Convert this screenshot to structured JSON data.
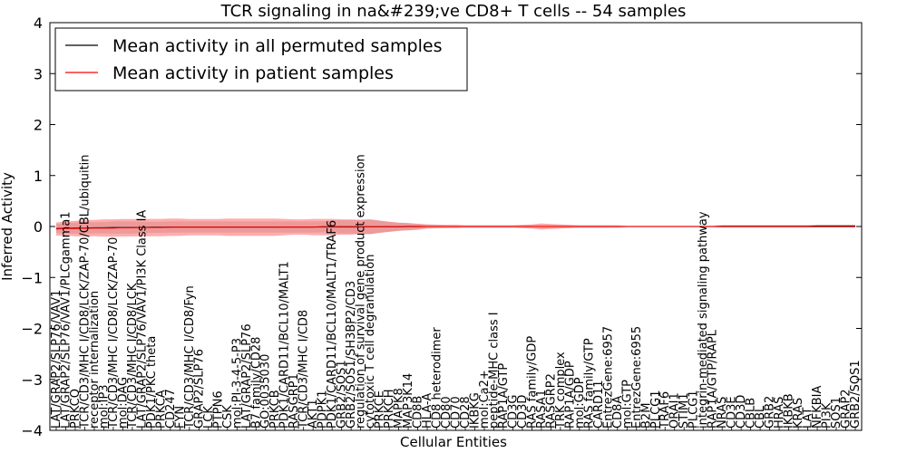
{
  "chart_data": {
    "type": "line",
    "title": "TCR signaling in na&#239;ve CD8+ T cells -- 54 samples",
    "xlabel": "Cellular Entities",
    "ylabel": "Inferred Activity",
    "ylim": [
      -4,
      4
    ],
    "yticks": [
      "4",
      "3",
      "2",
      "1",
      "0",
      "−1",
      "−2",
      "−3",
      "−4"
    ],
    "grid": false,
    "legend_position": "top-left",
    "categories": [
      "LAT/GRAP2/SLP76/VAV1",
      "LAT/GRAP2/SLP76/VAV1/PLCgamma1",
      "PRKCQ",
      "TCR/CD3/MHC I/CD8/LCK/ZAP-70/CBL/ubiquitin",
      "receptor internalization",
      "mol:IP3",
      "TCR/CD3/MHC I/CD8/LCK/ZAP-70",
      "mol:DAG",
      "TCR/CD3/MHC I/CD8/LCK",
      "LAT/GRAP2/SLP76/VAV1/PI3K Class IA",
      "PDK1/PKC theta",
      "PRKCA",
      "CD247",
      "FYN",
      "TCR/CD3/MHC I/CD8/Fyn",
      "GRAP2/SLP76",
      "LCK",
      "PTPN6",
      "CSK",
      "mol:PI-3-4-5-P3",
      "LAT/GRAP2/SLP76",
      "B7 family/CD28",
      "GO:0035030",
      "PRKCB",
      "PDK1/CARD11/BCL10/MALT1",
      "RASGRP1",
      "TCR/CD3/MHC I/CD8",
      "AKT1",
      "PDPK1",
      "PDK1/CARD11/BCL10/MALT1/TRAF6",
      "GRB2/SOS1",
      "GRB2/SOS1/SH3BP2/CD3",
      "regulation of survival gene product expression",
      "cytotoxic T cell degranulation",
      "PRKCE",
      "PRKCH",
      "MAPK8",
      "MAP3K14",
      "CD8B",
      "HLA-A",
      "CD8 heterodimer",
      "CD80",
      "CD70",
      "CD28",
      "IKBKG",
      "mol:Ca2+",
      "peptide-MHC class I",
      "RAP1A/GTP",
      "CD3G",
      "CD3D",
      "RAS family/GDP",
      "RASA1",
      "RASGRP2",
      "TRK complex",
      "RAP1A/GDP",
      "mol:GDP",
      "RAS family/GTP",
      "CARD11",
      "EntrezGene:6957",
      "CD8A",
      "mol:GTP",
      "EntrezGene:6955",
      "B2M",
      "PLCG1",
      "TRAF6",
      "ORAI1",
      "STIM1",
      "PLCG1",
      "integrin-mediated signaling pathway",
      "RAP1A/GTP/RAPL",
      "NRAS",
      "CD3E",
      "CD3D",
      "CBLB",
      "CBL",
      "GRB2",
      "HRAS",
      "IKBKB",
      "KRAS",
      "LAT",
      "NFKBIA",
      "PI3K",
      "SOS1",
      "GRAP2",
      "GRB2/SOS1"
    ],
    "series": [
      {
        "name": "Mean activity in all permuted samples",
        "color": "#000000",
        "values": [
          -0.04,
          -0.035,
          -0.03,
          -0.03,
          -0.025,
          -0.025,
          -0.02,
          -0.02,
          -0.02,
          -0.02,
          -0.015,
          -0.015,
          -0.01,
          -0.01,
          -0.01,
          -0.01,
          -0.01,
          -0.01,
          -0.01,
          -0.01,
          -0.01,
          -0.01,
          -0.01,
          -0.01,
          -0.01,
          -0.01,
          -0.01,
          -0.01,
          -0.005,
          -0.005,
          -0.005,
          -0.005,
          -0.005,
          -0.005,
          -0.005,
          -0.005,
          -0.005,
          0,
          0,
          0,
          0,
          0,
          0,
          0,
          0,
          0,
          0,
          0,
          0,
          0,
          0,
          0,
          0,
          0,
          0,
          0,
          0,
          0,
          0,
          0,
          0,
          0,
          0,
          0,
          0,
          0,
          0,
          0,
          0,
          0,
          0.005,
          0.005,
          0.005,
          0.005,
          0.005,
          0.005,
          0.005,
          0.005,
          0.005,
          0.005,
          0.01,
          0.01,
          0.01,
          0.01,
          0.01
        ]
      },
      {
        "name": "Mean activity in patient samples",
        "color": "#ff0000",
        "values": [
          -0.05,
          -0.04,
          -0.04,
          -0.035,
          -0.03,
          -0.03,
          -0.03,
          -0.025,
          -0.025,
          -0.02,
          -0.02,
          -0.02,
          -0.015,
          -0.015,
          -0.015,
          -0.015,
          -0.015,
          -0.015,
          -0.015,
          -0.015,
          -0.015,
          -0.015,
          -0.015,
          -0.015,
          -0.01,
          -0.01,
          -0.01,
          -0.01,
          -0.01,
          -0.01,
          -0.01,
          -0.01,
          -0.01,
          -0.005,
          -0.005,
          -0.005,
          -0.005,
          -0.005,
          -0.005,
          0,
          0,
          0,
          0,
          0,
          0,
          0,
          0,
          0,
          0,
          0,
          0,
          0,
          0,
          0,
          0,
          0,
          0,
          0,
          0,
          0,
          0,
          0,
          0,
          0,
          0,
          0,
          0,
          0,
          0,
          0,
          0,
          0,
          0,
          0,
          0,
          0,
          0,
          0,
          0,
          0,
          0,
          0,
          0,
          0,
          0
        ],
        "band_halfwidth": [
          0.13,
          0.14,
          0.15,
          0.16,
          0.16,
          0.17,
          0.17,
          0.17,
          0.17,
          0.17,
          0.17,
          0.17,
          0.17,
          0.17,
          0.16,
          0.16,
          0.16,
          0.16,
          0.17,
          0.17,
          0.17,
          0.17,
          0.17,
          0.17,
          0.16,
          0.15,
          0.15,
          0.16,
          0.16,
          0.16,
          0.15,
          0.15,
          0.14,
          0.14,
          0.12,
          0.1,
          0.08,
          0.07,
          0.06,
          0.04,
          0.03,
          0.03,
          0.03,
          0.02,
          0.02,
          0.02,
          0.02,
          0.02,
          0.02,
          0.03,
          0.04,
          0.06,
          0.05,
          0.04,
          0.03,
          0.02,
          0.02,
          0.02,
          0.02,
          0.02,
          0.01,
          0.01,
          0.01,
          0.01,
          0.01,
          0.01,
          0.01,
          0.01,
          0.01,
          0.01,
          0.02,
          0.02,
          0.02,
          0.02,
          0.02,
          0.02,
          0.02,
          0.02,
          0.02,
          0.02,
          0.02,
          0.02,
          0.02,
          0.02,
          0.02
        ]
      }
    ],
    "permuted_band_halfwidth": [
      0.09,
      0.1,
      0.11,
      0.11,
      0.11,
      0.11,
      0.12,
      0.12,
      0.12,
      0.11,
      0.11,
      0.11,
      0.11,
      0.11,
      0.11,
      0.11,
      0.11,
      0.11,
      0.11,
      0.11,
      0.11,
      0.11,
      0.11,
      0.11,
      0.11,
      0.11,
      0.11,
      0.11,
      0.11,
      0.12,
      0.13,
      0.13,
      0.14,
      0.15,
      0.12,
      0.1,
      0.08,
      0.07,
      0.05,
      0.04,
      0.04,
      0.03,
      0.03,
      0.03,
      0.03,
      0.03,
      0.03,
      0.03,
      0.03,
      0.03,
      0.03,
      0.03,
      0.03,
      0.03,
      0.03,
      0.03,
      0.03,
      0.03,
      0.03,
      0.03,
      0.02,
      0.02,
      0.02,
      0.02,
      0.02,
      0.02,
      0.02,
      0.02,
      0.02,
      0.02,
      0.03,
      0.03,
      0.03,
      0.03,
      0.03,
      0.03,
      0.03,
      0.03,
      0.03,
      0.03,
      0.03,
      0.03,
      0.03,
      0.03,
      0.03
    ]
  }
}
